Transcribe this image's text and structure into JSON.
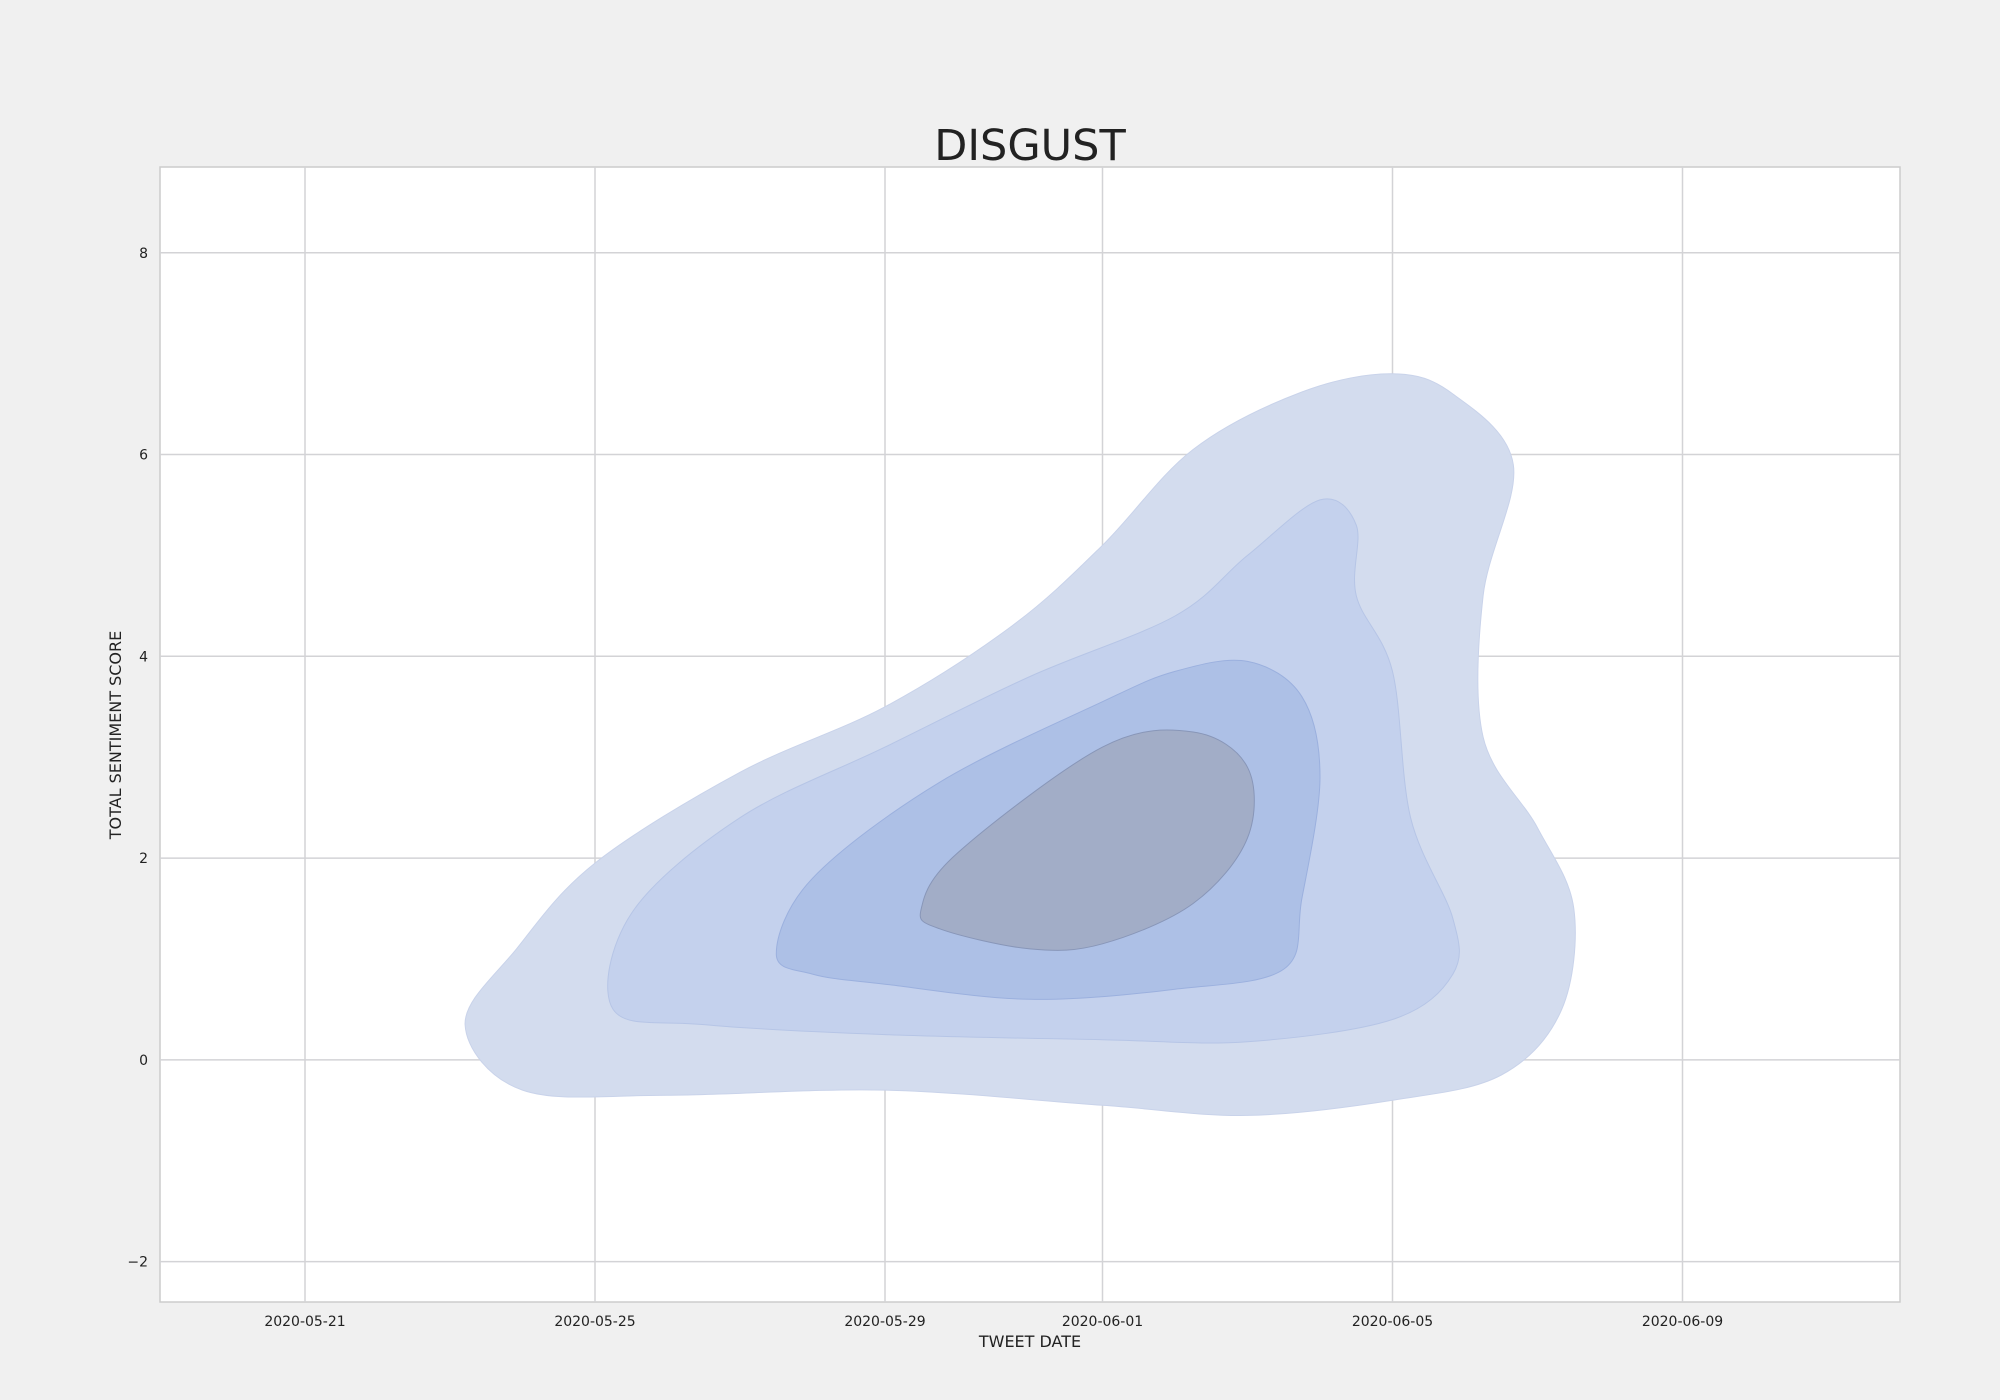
{
  "chart_data": {
    "type": "kde-contour",
    "title": "DISGUST",
    "xlabel": "TWEET DATE",
    "ylabel": "TOTAL SENTIMENT SCORE",
    "xlim": [
      "2020-05-19",
      "2020-06-12"
    ],
    "ylim": [
      -2.4,
      8.85
    ],
    "x_ticks": [
      "2020-05-21",
      "2020-05-25",
      "2020-05-29",
      "2020-06-01",
      "2020-06-05",
      "2020-06-09"
    ],
    "y_ticks": [
      -2,
      0,
      2,
      4,
      6,
      8
    ],
    "y_tick_labels": [
      "−2",
      "0",
      "2",
      "4",
      "6",
      "8"
    ],
    "grid": true,
    "colors": {
      "page_background": "#f0f0f0",
      "plot_background": "#ffffff",
      "grid": "#d3d3d6",
      "level_1": "#d3dcee",
      "level_2": "#c4d1ed",
      "level_3": "#adc0e6",
      "level_4": "#a2adc7"
    },
    "levels": [
      {
        "name": "level-1",
        "points": [
          [
            "2020-05-23 05:00",
            0.35
          ],
          [
            "2020-05-23 22:00",
            1.1
          ],
          [
            "2020-05-25 00:00",
            1.95
          ],
          [
            "2020-05-27 00:00",
            2.85
          ],
          [
            "2020-05-29 00:00",
            3.5
          ],
          [
            "2020-05-30 18:00",
            4.3
          ],
          [
            "2020-06-01 00:00",
            5.1
          ],
          [
            "2020-06-02 06:00",
            6.05
          ],
          [
            "2020-06-03 18:00",
            6.62
          ],
          [
            "2020-06-05 00:00",
            6.8
          ],
          [
            "2020-06-05 20:00",
            6.6
          ],
          [
            "2020-06-06 16:00",
            5.9
          ],
          [
            "2020-06-06 06:00",
            4.6
          ],
          [
            "2020-06-06 06:00",
            3.2
          ],
          [
            "2020-06-07 00:00",
            2.3
          ],
          [
            "2020-06-07 12:00",
            1.5
          ],
          [
            "2020-06-07 08:00",
            0.5
          ],
          [
            "2020-06-06 12:00",
            -0.15
          ],
          [
            "2020-06-05 00:00",
            -0.4
          ],
          [
            "2020-06-03 00:00",
            -0.55
          ],
          [
            "2020-06-01 00:00",
            -0.45
          ],
          [
            "2020-05-29 00:00",
            -0.3
          ],
          [
            "2020-05-26 00:00",
            -0.35
          ],
          [
            "2020-05-24 00:00",
            -0.3
          ]
        ]
      },
      {
        "name": "level-2",
        "points": [
          [
            "2020-05-25 06:00",
            0.5
          ],
          [
            "2020-05-25 12:00",
            1.45
          ],
          [
            "2020-05-27 00:00",
            2.4
          ],
          [
            "2020-05-29 00:00",
            3.1
          ],
          [
            "2020-05-31 00:00",
            3.8
          ],
          [
            "2020-06-02 00:00",
            4.4
          ],
          [
            "2020-06-03 00:00",
            5.0
          ],
          [
            "2020-06-04 00:00",
            5.55
          ],
          [
            "2020-06-04 12:00",
            5.3
          ],
          [
            "2020-06-04 12:00",
            4.6
          ],
          [
            "2020-06-05 00:00",
            3.85
          ],
          [
            "2020-06-05 06:00",
            2.4
          ],
          [
            "2020-06-05 20:00",
            1.4
          ],
          [
            "2020-06-05 20:00",
            0.85
          ],
          [
            "2020-06-05 00:00",
            0.4
          ],
          [
            "2020-06-03 00:00",
            0.18
          ],
          [
            "2020-06-01 00:00",
            0.2
          ],
          [
            "2020-05-29 00:00",
            0.25
          ],
          [
            "2020-05-26 12:00",
            0.35
          ]
        ]
      },
      {
        "name": "level-3",
        "points": [
          [
            "2020-05-27 12:00",
            1.05
          ],
          [
            "2020-05-28 00:00",
            1.8
          ],
          [
            "2020-05-29 18:00",
            2.75
          ],
          [
            "2020-06-01 00:00",
            3.55
          ],
          [
            "2020-06-02 00:00",
            3.85
          ],
          [
            "2020-06-03 00:00",
            3.95
          ],
          [
            "2020-06-03 18:00",
            3.6
          ],
          [
            "2020-06-04 00:00",
            2.8
          ],
          [
            "2020-06-03 18:00",
            1.6
          ],
          [
            "2020-06-03 12:00",
            0.9
          ],
          [
            "2020-06-02 00:00",
            0.7
          ],
          [
            "2020-05-31 00:00",
            0.6
          ],
          [
            "2020-05-29 00:00",
            0.75
          ],
          [
            "2020-05-28 00:00",
            0.85
          ]
        ]
      },
      {
        "name": "level-4",
        "points": [
          [
            "2020-05-29 12:00",
            1.5
          ],
          [
            "2020-05-30 00:00",
            2.05
          ],
          [
            "2020-06-01 00:00",
            3.1
          ],
          [
            "2020-06-02 06:00",
            3.25
          ],
          [
            "2020-06-03 00:00",
            2.9
          ],
          [
            "2020-06-03 00:00",
            2.2
          ],
          [
            "2020-06-02 06:00",
            1.55
          ],
          [
            "2020-06-01 00:00",
            1.15
          ],
          [
            "2020-05-31 00:00",
            1.1
          ],
          [
            "2020-05-29 18:00",
            1.3
          ]
        ]
      }
    ]
  }
}
